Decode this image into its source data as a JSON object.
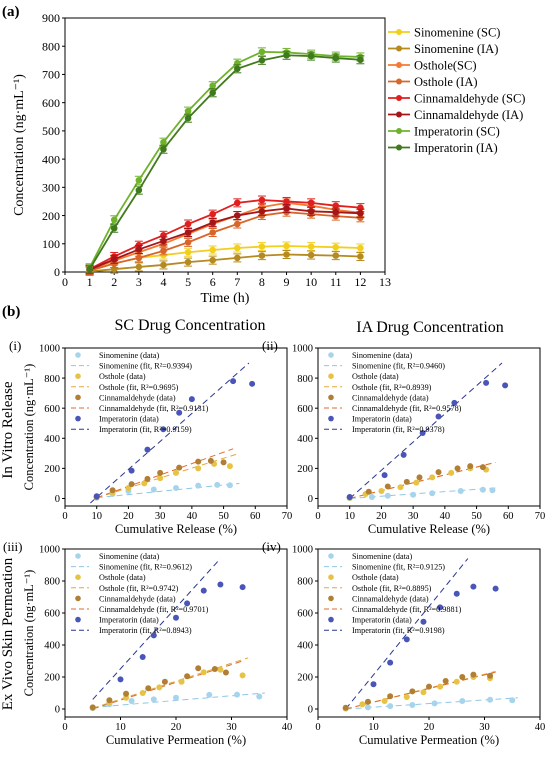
{
  "panel_labels": {
    "a": "(a)",
    "b": "(b)"
  },
  "titles": {
    "sc": "SC Drug Concentration",
    "ia": "IA Drug Concentration"
  },
  "row_labels": {
    "release": "In Vitro Release",
    "permeation": "Ex Vivo Skin Permeation"
  },
  "colors": {
    "sino_sc": "#f2cf1d",
    "sino_ia": "#b58a1e",
    "ost_sc": "#f47a32",
    "ost_ia": "#d8662a",
    "cin_sc": "#e01f1f",
    "cin_ia": "#a4161a",
    "imp_sc": "#6fb22c",
    "imp_ia": "#3f7a1c",
    "sub_sino": "#a6d4ec",
    "sub_ost": "#e6c245",
    "sub_cin": "#b07f35",
    "sub_imp": "#4a55b8",
    "fit_sino": "#8fc6e6",
    "fit_ost": "#e3a83a",
    "fit_cin": "#e06a2c",
    "fit_imp": "#2a3690"
  },
  "chart_data": [
    {
      "type": "line",
      "id": "a",
      "xlabel": "Time (h)",
      "ylabel": "Concentration (ng·mL⁻¹)",
      "xlim": [
        0,
        13
      ],
      "ylim": [
        0,
        900
      ],
      "xticks": [
        0,
        1,
        2,
        3,
        4,
        5,
        6,
        7,
        8,
        9,
        10,
        11,
        12,
        13
      ],
      "yticks": [
        0,
        100,
        200,
        300,
        400,
        500,
        600,
        700,
        800,
        900
      ],
      "x": [
        1,
        2,
        3,
        4,
        5,
        6,
        7,
        8,
        9,
        10,
        11,
        12
      ],
      "legend_placement": "top-right",
      "series": [
        {
          "name": "Sinomenine (SC)",
          "color_key": "sino_sc",
          "values": [
            5,
            30,
            50,
            60,
            70,
            78,
            85,
            90,
            92,
            90,
            88,
            85
          ]
        },
        {
          "name": "Sinomenine (IA)",
          "color_key": "sino_ia",
          "values": [
            2,
            10,
            18,
            25,
            35,
            42,
            50,
            58,
            62,
            60,
            58,
            55
          ]
        },
        {
          "name": "Ostholé(SC)",
          "color_key": "ost_sc",
          "values": [
            8,
            40,
            70,
            100,
            135,
            170,
            200,
            230,
            245,
            235,
            220,
            210
          ]
        },
        {
          "name": "Osthole (IA)",
          "color_key": "ost_ia",
          "values": [
            5,
            30,
            50,
            75,
            105,
            140,
            170,
            200,
            212,
            205,
            198,
            192
          ]
        },
        {
          "name": "Cinnamaldehyde (SC)",
          "color_key": "cin_sc",
          "values": [
            10,
            55,
            95,
            130,
            170,
            205,
            245,
            255,
            250,
            245,
            235,
            228
          ]
        },
        {
          "name": "Cinnamaldehyde (IA)",
          "color_key": "cin_ia",
          "values": [
            8,
            45,
            80,
            110,
            140,
            175,
            200,
            215,
            225,
            215,
            212,
            208
          ]
        },
        {
          "name": "Imperatorin (SC)",
          "color_key": "imp_sc",
          "values": [
            15,
            185,
            325,
            460,
            570,
            660,
            740,
            780,
            778,
            772,
            765,
            762
          ]
        },
        {
          "name": "Imperatorin (IA)",
          "color_key": "imp_ia",
          "values": [
            10,
            155,
            290,
            435,
            545,
            635,
            720,
            750,
            768,
            765,
            758,
            752
          ]
        }
      ]
    },
    {
      "type": "scatter",
      "id": "i",
      "panel": "(i)",
      "xlabel": "Cumulative Release (%)",
      "ylabel": "Concentration (ng·mL⁻¹)",
      "xlim": [
        0,
        70
      ],
      "ylim": [
        -50,
        1000
      ],
      "xticks": [
        0,
        10,
        20,
        30,
        40,
        50,
        60,
        70
      ],
      "yticks": [
        0,
        200,
        400,
        600,
        800,
        1000
      ],
      "legend_placement": "top-left",
      "series": [
        {
          "name": "Sinomenine (data)",
          "fit": "Sinomenine (fit, R²=0.9394)",
          "color_key": "sub_sino",
          "fit_color_key": "fit_sino",
          "x": [
            10,
            15,
            20,
            28,
            35,
            42,
            48,
            52
          ],
          "y": [
            5,
            30,
            50,
            60,
            70,
            85,
            90,
            88
          ],
          "fit_x": [
            10,
            55
          ],
          "fit_y": [
            5,
            100
          ]
        },
        {
          "name": "Osthole (data)",
          "fit": "Osthole (fit, R²=0.9695)",
          "color_key": "sub_ost",
          "fit_color_key": "fit_ost",
          "x": [
            10,
            15,
            20,
            25,
            30,
            35,
            42,
            47,
            52
          ],
          "y": [
            8,
            40,
            70,
            100,
            135,
            170,
            200,
            230,
            215
          ],
          "fit_x": [
            10,
            55
          ],
          "fit_y": [
            5,
            300
          ]
        },
        {
          "name": "Cinnamaldehyde (data)",
          "fit": "Cinnamaldehyde (fit, R²=0.9131)",
          "color_key": "sub_cin",
          "fit_color_key": "fit_cin",
          "x": [
            10,
            15,
            21,
            26,
            30,
            36,
            42,
            46,
            50
          ],
          "y": [
            10,
            55,
            95,
            130,
            170,
            205,
            245,
            250,
            240
          ],
          "fit_x": [
            10,
            53
          ],
          "fit_y": [
            5,
            330
          ]
        },
        {
          "name": "Imperatorin (data)",
          "fit": "Imperatorin (fit, R²=0.9159)",
          "color_key": "sub_imp",
          "fit_color_key": "fit_imp",
          "x": [
            10,
            21,
            26,
            31,
            36,
            40,
            53,
            59
          ],
          "y": [
            15,
            185,
            325,
            460,
            570,
            660,
            780,
            762
          ],
          "fit_x": [
            8,
            58
          ],
          "fit_y": [
            -30,
            900
          ]
        }
      ]
    },
    {
      "type": "scatter",
      "id": "ii",
      "panel": "(ii)",
      "xlabel": "Cumulative Release (%)",
      "ylabel": "",
      "xlim": [
        0,
        70
      ],
      "ylim": [
        -50,
        1000
      ],
      "xticks": [
        0,
        10,
        20,
        30,
        40,
        50,
        60,
        70
      ],
      "yticks": [
        0,
        200,
        400,
        600,
        800,
        1000
      ],
      "legend_placement": "top-left",
      "series": [
        {
          "name": "Sinomenine (data)",
          "fit": "Sinomenine (fit, R²=0.9460)",
          "color_key": "sub_sino",
          "fit_color_key": "fit_sino",
          "x": [
            10,
            17,
            22,
            30,
            36,
            45,
            52,
            55
          ],
          "y": [
            2,
            10,
            18,
            25,
            35,
            50,
            58,
            55
          ],
          "fit_x": [
            10,
            56
          ],
          "fit_y": [
            0,
            70
          ]
        },
        {
          "name": "Osthole (data)",
          "fit": "Osthole (fit, R²=0.8939)",
          "color_key": "sub_ost",
          "fit_color_key": "fit_ost",
          "x": [
            10,
            15,
            20,
            26,
            31,
            36,
            42,
            48,
            53
          ],
          "y": [
            5,
            30,
            50,
            75,
            105,
            140,
            170,
            200,
            192
          ],
          "fit_x": [
            10,
            56
          ],
          "fit_y": [
            0,
            240
          ]
        },
        {
          "name": "Cinnamaldehyde (data)",
          "fit": "Cinnamaldehyde (fit, R²=0.9578)",
          "color_key": "sub_cin",
          "fit_color_key": "fit_cin",
          "x": [
            10,
            16,
            22,
            28,
            32,
            38,
            44,
            48,
            52
          ],
          "y": [
            8,
            45,
            80,
            110,
            140,
            175,
            200,
            215,
            208
          ],
          "fit_x": [
            10,
            56
          ],
          "fit_y": [
            0,
            240
          ]
        },
        {
          "name": "Imperatorin (data)",
          "fit": "Imperatorin (fit, R²=0.9378)",
          "color_key": "sub_imp",
          "fit_color_key": "fit_imp",
          "x": [
            10,
            21,
            27,
            33,
            38,
            43,
            53,
            59
          ],
          "y": [
            10,
            155,
            290,
            435,
            545,
            635,
            768,
            752
          ],
          "fit_x": [
            10,
            58
          ],
          "fit_y": [
            0,
            900
          ]
        }
      ]
    },
    {
      "type": "scatter",
      "id": "iii",
      "panel": "(iii)",
      "xlabel": "Cumulative Permeation (%)",
      "ylabel": "Concentration (ng·mL⁻¹)",
      "xlim": [
        0,
        40
      ],
      "ylim": [
        -50,
        1000
      ],
      "xticks": [
        0,
        10,
        20,
        30,
        40
      ],
      "yticks": [
        0,
        200,
        400,
        600,
        800,
        1000
      ],
      "legend_placement": "top-left",
      "series": [
        {
          "name": "Sinomenine (data)",
          "fit": "Sinomenine (fit, R²=0.9612)",
          "color_key": "sub_sino",
          "fit_color_key": "fit_sino",
          "x": [
            5,
            8,
            12,
            16,
            20,
            26,
            31,
            35
          ],
          "y": [
            5,
            30,
            50,
            60,
            70,
            88,
            90,
            78
          ],
          "fit_x": [
            5,
            36
          ],
          "fit_y": [
            10,
            100
          ]
        },
        {
          "name": "Osthole (data)",
          "fit": "Osthole (fit, R²=0.9742)",
          "color_key": "sub_ost",
          "fit_color_key": "fit_ost",
          "x": [
            5,
            8,
            11,
            14,
            17,
            21,
            25,
            28,
            32
          ],
          "y": [
            8,
            40,
            70,
            100,
            135,
            170,
            230,
            245,
            210
          ],
          "fit_x": [
            5,
            33
          ],
          "fit_y": [
            5,
            320
          ]
        },
        {
          "name": "Cinnamaldehyde (data)",
          "fit": "Cinnamaldehyde (fit, R²=0.9701)",
          "color_key": "sub_cin",
          "fit_color_key": "fit_cin",
          "x": [
            5,
            8,
            11,
            15,
            18,
            22,
            24,
            27,
            29
          ],
          "y": [
            10,
            55,
            95,
            130,
            170,
            205,
            255,
            250,
            228
          ],
          "fit_x": [
            5,
            32
          ],
          "fit_y": [
            0,
            300
          ]
        },
        {
          "name": "Imperatorin (data)",
          "fit": "Imperatorin (fit, R²=0.8943)",
          "color_key": "sub_imp",
          "fit_color_key": "fit_imp",
          "x": [
            10,
            14,
            16,
            20,
            22,
            25,
            28,
            32
          ],
          "y": [
            185,
            325,
            460,
            570,
            660,
            740,
            778,
            762
          ],
          "fit_x": [
            5,
            28
          ],
          "fit_y": [
            60,
            940
          ]
        }
      ]
    },
    {
      "type": "scatter",
      "id": "iv",
      "panel": "(iv)",
      "xlabel": "Cumulative Permeation (%)",
      "ylabel": "",
      "xlim": [
        0,
        40
      ],
      "ylim": [
        -50,
        1000
      ],
      "xticks": [
        0,
        10,
        20,
        30,
        40
      ],
      "yticks": [
        0,
        200,
        400,
        600,
        800,
        1000
      ],
      "legend_placement": "top-left",
      "series": [
        {
          "name": "Sinomenine (data)",
          "fit": "Sinomenine (fit, R²=0.9125)",
          "color_key": "sub_sino",
          "fit_color_key": "fit_sino",
          "x": [
            5,
            9,
            13,
            17,
            21,
            26,
            31,
            35
          ],
          "y": [
            2,
            10,
            18,
            25,
            35,
            50,
            58,
            55
          ],
          "fit_x": [
            5,
            36
          ],
          "fit_y": [
            0,
            70
          ]
        },
        {
          "name": "Osthole (data)",
          "fit": "Osthole (fit, R²=0.8895)",
          "color_key": "sub_ost",
          "fit_color_key": "fit_ost",
          "x": [
            5,
            8,
            12,
            16,
            19,
            22,
            25,
            28,
            31
          ],
          "y": [
            5,
            30,
            50,
            75,
            105,
            140,
            170,
            200,
            192
          ],
          "fit_x": [
            5,
            32
          ],
          "fit_y": [
            0,
            235
          ]
        },
        {
          "name": "Cinnamaldehyde (data)",
          "fit": "Cinnamaldehyde (fit, R²=0.9881)",
          "color_key": "sub_cin",
          "fit_color_key": "fit_cin",
          "x": [
            5,
            9,
            13,
            17,
            20,
            23,
            26,
            28,
            31
          ],
          "y": [
            8,
            45,
            80,
            110,
            140,
            175,
            200,
            215,
            208
          ],
          "fit_x": [
            5,
            32
          ],
          "fit_y": [
            0,
            230
          ]
        },
        {
          "name": "Imperatorin (data)",
          "fit": "Imperatorin (fit, R²=0.9198)",
          "color_key": "sub_imp",
          "fit_color_key": "fit_imp",
          "x": [
            10,
            13,
            16,
            19,
            22,
            25,
            28,
            32
          ],
          "y": [
            155,
            290,
            435,
            545,
            635,
            720,
            765,
            752
          ],
          "fit_x": [
            5,
            27
          ],
          "fit_y": [
            0,
            940
          ]
        }
      ]
    }
  ]
}
